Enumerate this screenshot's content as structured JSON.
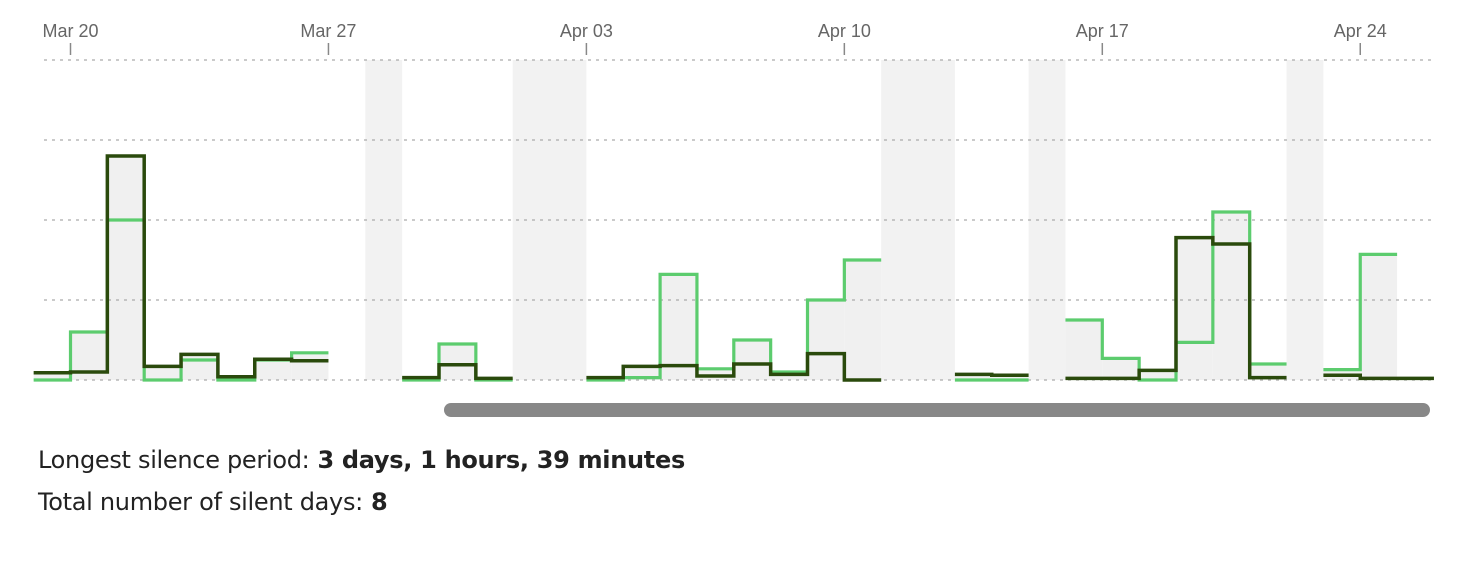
{
  "chart_data": {
    "type": "step-line",
    "x_start": "2021-03-20",
    "x_range_days": [
      -1.3,
      39.3
    ],
    "y_range": [
      0,
      4
    ],
    "grid": "horizontal dotted",
    "xticks": [
      {
        "day": 0,
        "label": "Mar 20"
      },
      {
        "day": 7,
        "label": "Mar 27"
      },
      {
        "day": 14,
        "label": "Apr 03"
      },
      {
        "day": 21,
        "label": "Apr 10"
      },
      {
        "day": 28,
        "label": "Apr 17"
      },
      {
        "day": 35,
        "label": "Apr 24"
      }
    ],
    "shaded_periods": [
      {
        "start": 8.0,
        "end": 9.0
      },
      {
        "start": 12.0,
        "end": 14.0
      },
      {
        "start": 22.0,
        "end": 24.0
      },
      {
        "start": 26.0,
        "end": 27.0
      },
      {
        "start": 33.0,
        "end": 34.0
      }
    ],
    "series": [
      {
        "name": "light",
        "color": "#5ccc6e",
        "segments": [
          [
            [
              -1.0,
              0.0
            ],
            [
              0.0,
              0.6
            ],
            [
              1.0,
              2.0
            ],
            [
              2.0,
              0.0
            ],
            [
              3.0,
              0.25
            ],
            [
              4.0,
              0.0
            ],
            [
              5.0,
              0.25
            ],
            [
              6.0,
              0.34
            ],
            [
              7.0,
              null
            ]
          ],
          [
            [
              9.0,
              0.0
            ],
            [
              10.0,
              0.45
            ],
            [
              11.0,
              0.0
            ],
            [
              12.0,
              null
            ]
          ],
          [
            [
              14.0,
              0.0
            ],
            [
              15.0,
              0.03
            ],
            [
              16.0,
              1.32
            ],
            [
              17.0,
              0.14
            ],
            [
              18.0,
              0.5
            ],
            [
              19.0,
              0.1
            ],
            [
              20.0,
              1.0
            ],
            [
              21.0,
              1.5
            ],
            [
              22.0,
              null
            ]
          ],
          [
            [
              24.0,
              0.0
            ],
            [
              26.0,
              null
            ]
          ],
          [
            [
              27.0,
              0.75
            ],
            [
              28.0,
              0.27
            ],
            [
              29.0,
              0.0
            ],
            [
              30.0,
              0.47
            ],
            [
              31.0,
              2.1
            ],
            [
              32.0,
              0.2
            ],
            [
              33.0,
              null
            ]
          ],
          [
            [
              34.0,
              0.13
            ],
            [
              35.0,
              1.57
            ],
            [
              36.0,
              null
            ]
          ]
        ]
      },
      {
        "name": "dark",
        "color": "#2a4a0c",
        "segments": [
          [
            [
              -1.0,
              0.09
            ],
            [
              0.0,
              0.1
            ],
            [
              1.0,
              2.8
            ],
            [
              2.0,
              0.17
            ],
            [
              3.0,
              0.32
            ],
            [
              4.0,
              0.04
            ],
            [
              5.0,
              0.26
            ],
            [
              6.0,
              0.24
            ],
            [
              7.0,
              null
            ]
          ],
          [
            [
              9.0,
              0.03
            ],
            [
              10.0,
              0.19
            ],
            [
              11.0,
              0.02
            ],
            [
              12.0,
              null
            ]
          ],
          [
            [
              14.0,
              0.03
            ],
            [
              15.0,
              0.17
            ],
            [
              16.0,
              0.18
            ],
            [
              17.0,
              0.05
            ],
            [
              18.0,
              0.2
            ],
            [
              19.0,
              0.07
            ],
            [
              20.0,
              0.33
            ],
            [
              21.0,
              0.0
            ],
            [
              22.0,
              null
            ]
          ],
          [
            [
              24.0,
              0.07
            ],
            [
              25.0,
              0.06
            ],
            [
              26.0,
              null
            ]
          ],
          [
            [
              27.0,
              0.02
            ],
            [
              28.0,
              0.02
            ],
            [
              29.0,
              0.12
            ],
            [
              30.0,
              1.78
            ],
            [
              31.0,
              1.7
            ],
            [
              32.0,
              0.03
            ],
            [
              33.0,
              null
            ]
          ],
          [
            [
              34.0,
              0.06
            ],
            [
              35.0,
              0.02
            ],
            [
              36.0,
              0.02
            ],
            [
              37.0,
              null
            ]
          ]
        ]
      }
    ]
  },
  "stats": {
    "longest_label": "Longest silence period:",
    "longest_value": "3 days, 1 hours, 39 minutes",
    "silent_days_label": "Total number of silent days:",
    "silent_days_value": "8"
  }
}
